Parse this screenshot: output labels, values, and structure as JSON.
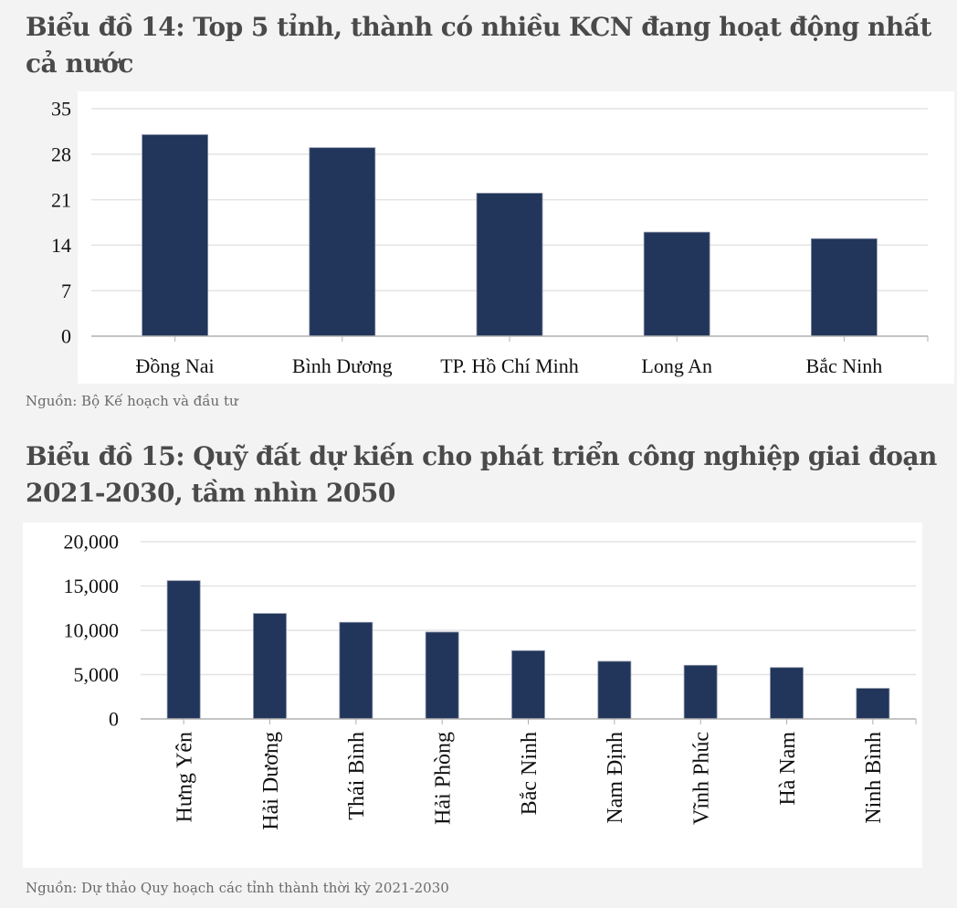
{
  "chart_data": [
    {
      "type": "bar",
      "title": "Biểu đồ 14: Top 5 tỉnh, thành có nhiều KCN đang hoạt động nhất cả nước",
      "title_lines": [
        "Biểu đồ 14: Top 5 tỉnh, thành có nhiều KCN đang hoạt động nhất",
        "cả nước"
      ],
      "categories": [
        "Đồng Nai",
        "Bình Dương",
        "TP. Hồ Chí Minh",
        "Long An",
        "Bắc Ninh"
      ],
      "values": [
        31,
        29,
        22,
        16,
        15
      ],
      "xlabel": "",
      "ylabel": "",
      "ylim": [
        0,
        35
      ],
      "yticks": [
        "0",
        "7",
        "14",
        "21",
        "28",
        "35"
      ],
      "grid": true,
      "legend": null,
      "bar_color": "#22355a",
      "source": "Nguồn: Bộ Kế hoạch  và đầu tư"
    },
    {
      "type": "bar",
      "title": "Biểu đồ 15: Quỹ đất dự kiến cho phát triển công nghiệp giai đoạn 2021-2030, tầm nhìn 2050",
      "title_lines": [
        "Biểu đồ 15: Quỹ đất dự kiến cho phát triển công nghiệp giai đoạn",
        "2021-2030, tầm nhìn 2050"
      ],
      "categories": [
        "Hưng Yên",
        "Hải Dương",
        "Thái Bình",
        "Hải Phòng",
        "Bắc Ninh",
        "Nam Định",
        "Vĩnh Phúc",
        "Hà Nam",
        "Ninh Bình"
      ],
      "values": [
        15600,
        11900,
        10900,
        9800,
        7700,
        6500,
        6050,
        5800,
        3450
      ],
      "xlabel": "",
      "ylabel": "",
      "ylim": [
        0,
        20000
      ],
      "yticks": [
        "0",
        "5,000",
        "10,000",
        "15,000",
        "20,000"
      ],
      "grid": true,
      "legend": null,
      "x_label_rotation": -90,
      "bar_color": "#22355a",
      "source": "Nguồn: Dự thảo Quy hoạch các tỉnh thành thời kỳ 2021-2030"
    }
  ]
}
